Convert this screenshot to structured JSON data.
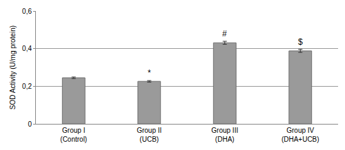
{
  "chart_data": {
    "type": "bar",
    "y_label": "SOD Activity (U/mg protein)",
    "categories": [
      "Group I\n(Control)",
      "Group II\n(UCB)",
      "Group III\n(DHA)",
      "Group IV\n(DHA+UCB)"
    ],
    "values": [
      0.245,
      0.226,
      0.431,
      0.388
    ],
    "errors": [
      0.004,
      0.004,
      0.008,
      0.008
    ],
    "color": "#9a9a9a",
    "ylim": [
      0,
      0.6
    ],
    "yticks": [
      0,
      {
        "value": 0.2,
        "label": "0,2"
      },
      {
        "value": 0.4,
        "label": "0,4"
      },
      {
        "value": 0.6,
        "label": "0,6"
      }
    ],
    "grid": true,
    "annotations": [
      {
        "category": "Group II\n(UCB)",
        "text": "*"
      },
      {
        "category": "Group III\n(DHA)",
        "text": "#"
      },
      {
        "category": "Group IV\n(DHA+UCB)",
        "text": "$"
      }
    ]
  }
}
